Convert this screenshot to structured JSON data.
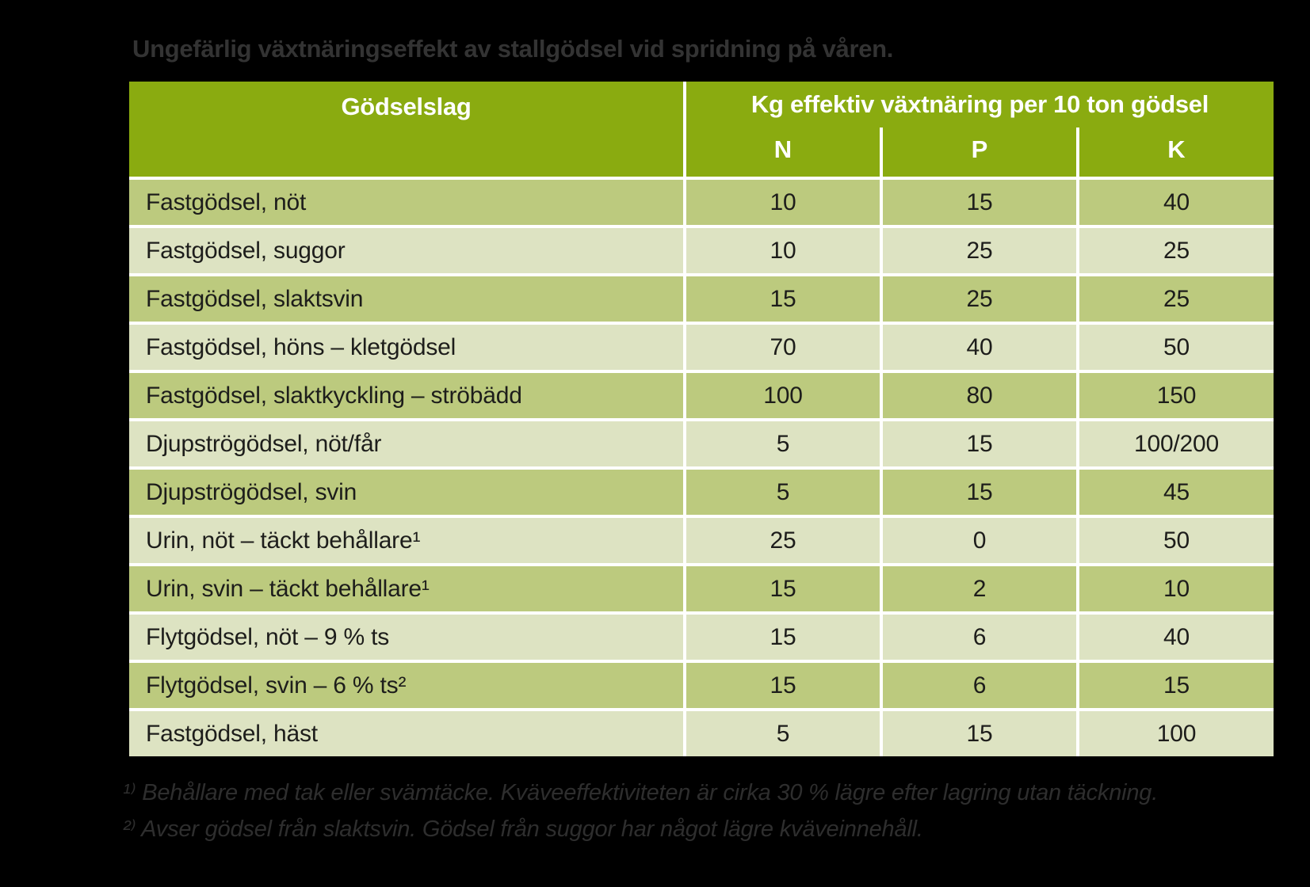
{
  "title": "Ungefärlig växtnäringseffekt av stallgödsel vid spridning på våren.",
  "table": {
    "header": {
      "col1": "Gödselslag",
      "col_group": "Kg effektiv växtnäring per 10 ton gödsel",
      "sub_columns": [
        "N",
        "P",
        "K"
      ]
    },
    "rows": [
      {
        "label": "Fastgödsel, nöt",
        "n": "10",
        "p": "15",
        "k": "40"
      },
      {
        "label": "Fastgödsel, suggor",
        "n": "10",
        "p": "25",
        "k": "25"
      },
      {
        "label": "Fastgödsel, slaktsvin",
        "n": "15",
        "p": "25",
        "k": "25"
      },
      {
        "label": "Fastgödsel, höns – kletgödsel",
        "n": "70",
        "p": "40",
        "k": "50"
      },
      {
        "label": "Fastgödsel, slaktkyckling – ströbädd",
        "n": "100",
        "p": "80",
        "k": "150"
      },
      {
        "label": "Djupströgödsel, nöt/får",
        "n": "5",
        "p": "15",
        "k": "100/200"
      },
      {
        "label": "Djupströgödsel, svin",
        "n": "5",
        "p": "15",
        "k": "45"
      },
      {
        "label": "Urin, nöt – täckt behållare¹",
        "n": "25",
        "p": "0",
        "k": "50"
      },
      {
        "label": "Urin, svin – täckt behållare¹",
        "n": "15",
        "p": "2",
        "k": "10"
      },
      {
        "label": "Flytgödsel, nöt – 9 % ts",
        "n": "15",
        "p": "6",
        "k": "40"
      },
      {
        "label": "Flytgödsel, svin – 6 % ts²",
        "n": "15",
        "p": "6",
        "k": "15"
      },
      {
        "label": "Fastgödsel, häst",
        "n": "5",
        "p": "15",
        "k": "100"
      }
    ]
  },
  "footnotes": [
    "¹⁾ Behållare med tak eller svämtäcke. Kväveeffektiviteten är cirka 30 % lägre efter lagring utan täckning.",
    "²⁾ Avser gödsel från slaktsvin. Gödsel från suggor har något lägre kväveinnehåll."
  ],
  "colors": {
    "header_green": "#8aab10",
    "row_light": "#dde3c2",
    "row_dark": "#bcca7e",
    "divider": "#ffffff",
    "cell_text": "#1d1d1b",
    "header_text": "#ffffff",
    "title_color": "#333333",
    "footnote_color": "#2e2e2e",
    "page_bg": "#000000"
  }
}
